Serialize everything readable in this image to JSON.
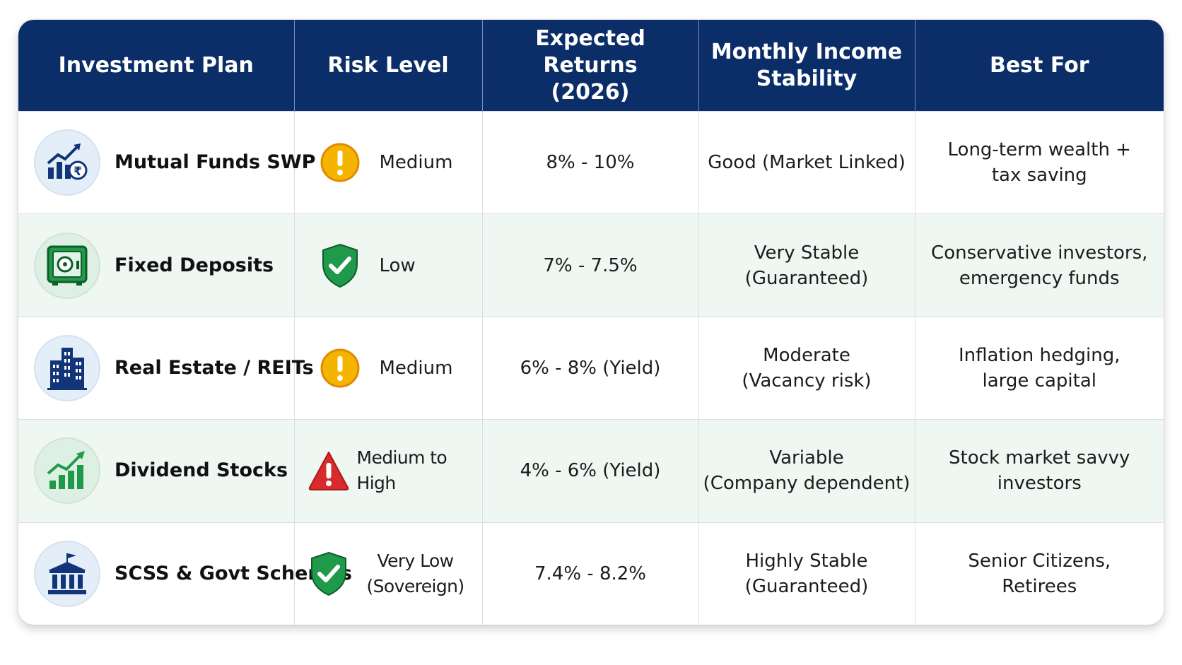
{
  "table": {
    "headers": [
      "Investment Plan",
      "Risk Level",
      "Expected Returns\n(2026)",
      "Monthly Income\nStability",
      "Best For"
    ],
    "rows": [
      {
        "plan": "Mutual Funds SWP",
        "plan_icon": "chart-rupee-icon",
        "risk": "Medium",
        "risk_icon": "warning-circle-icon",
        "returns": "8% - 10%",
        "stability": "Good (Market Linked)",
        "best_for": "Long-term wealth +\ntax saving"
      },
      {
        "plan": "Fixed Deposits",
        "plan_icon": "safe-icon",
        "risk": "Low",
        "risk_icon": "shield-check-icon",
        "returns": "7% - 7.5%",
        "stability": "Very Stable\n(Guaranteed)",
        "best_for": "Conservative investors,\nemergency funds"
      },
      {
        "plan": "Real Estate / REITs",
        "plan_icon": "buildings-icon",
        "risk": "Medium",
        "risk_icon": "warning-circle-icon",
        "returns": "6% - 8% (Yield)",
        "stability": "Moderate\n(Vacancy risk)",
        "best_for": "Inflation hedging,\nlarge capital"
      },
      {
        "plan": "Dividend Stocks",
        "plan_icon": "growth-chart-icon",
        "risk": "Medium to High",
        "risk_icon": "warning-triangle-icon",
        "returns": "4% - 6% (Yield)",
        "stability": "Variable\n(Company dependent)",
        "best_for": "Stock market savvy\ninvestors"
      },
      {
        "plan": "SCSS & Govt Schemes",
        "plan_icon": "government-building-icon",
        "risk": "Very Low\n(Sovereign)",
        "risk_icon": "shield-check-icon",
        "returns": "7.4% - 8.2%",
        "stability": "Highly Stable\n(Guaranteed)",
        "best_for": "Senior Citizens,\nRetirees"
      }
    ]
  },
  "colors": {
    "header_bg": "#0b2d68",
    "alt_row_bg": "#eef7f1",
    "warning_yellow": "#f4b400",
    "danger_red": "#d92b2b",
    "safe_green": "#1f9a4a",
    "icon_navy": "#12357a"
  }
}
